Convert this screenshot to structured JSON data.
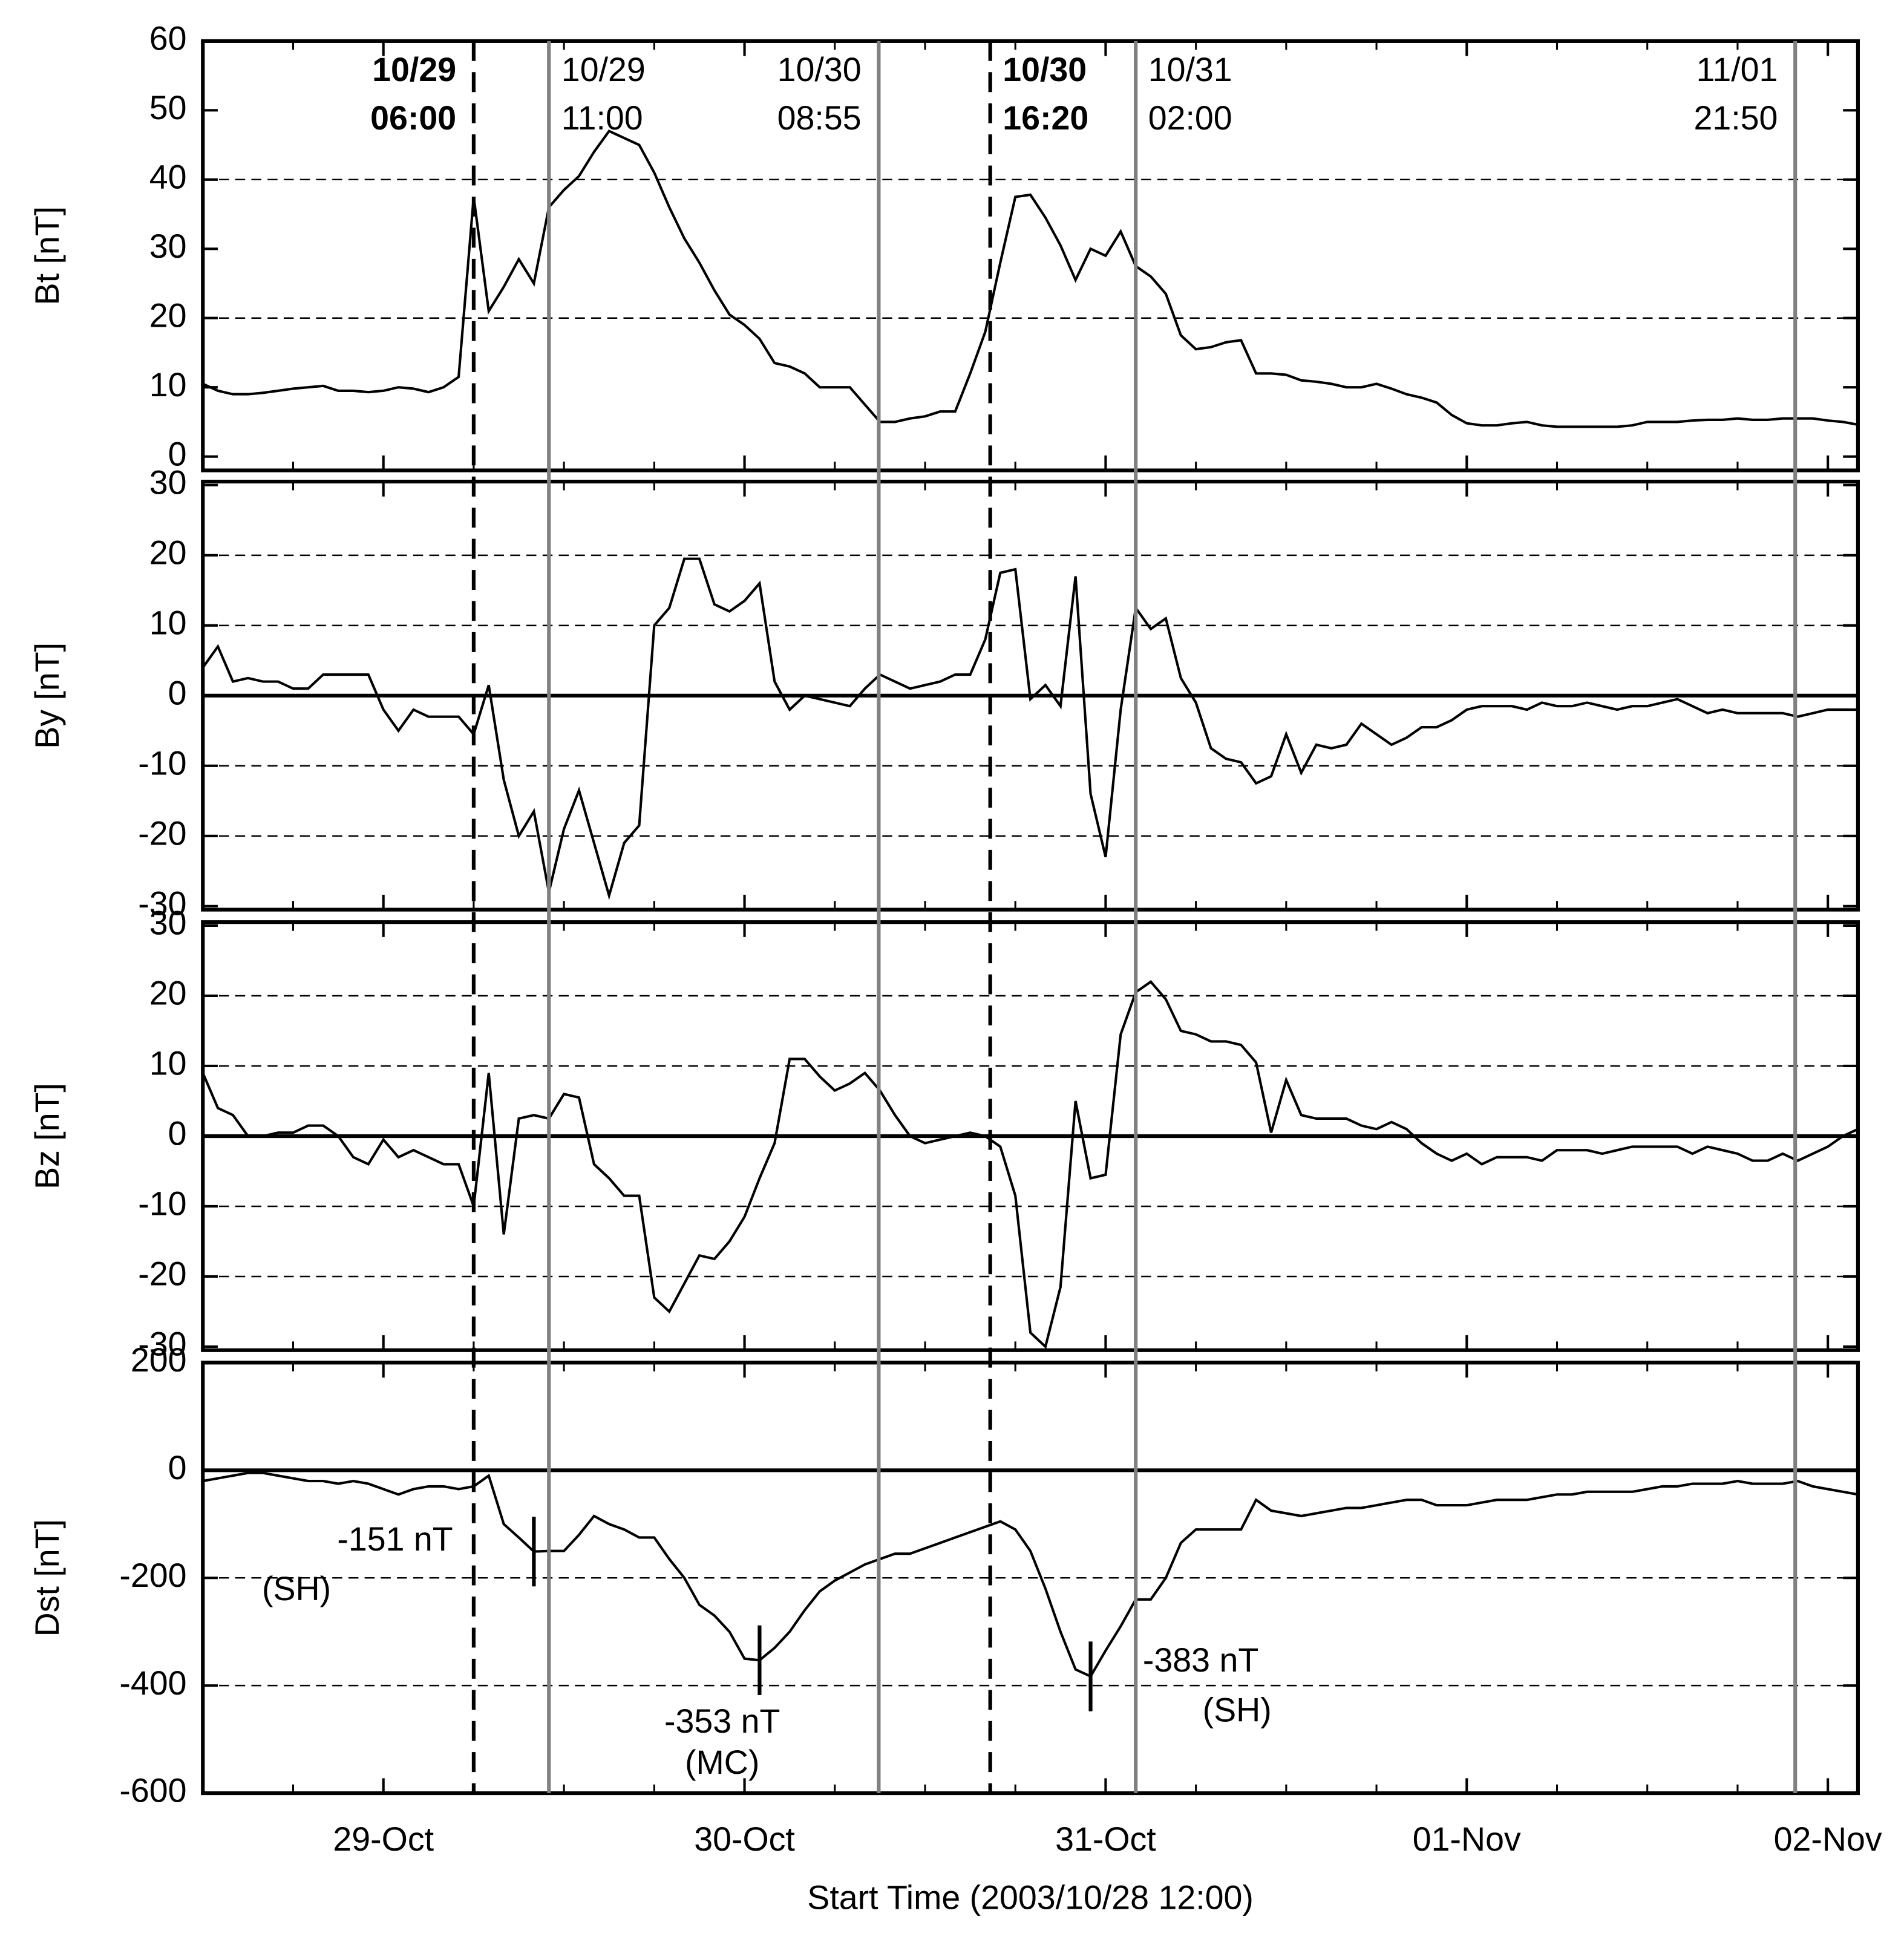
{
  "chart_data": {
    "type": "line",
    "xlabel": "Start Time (2003/10/28 12:00)",
    "xlim": [
      0,
      110
    ],
    "xticks": [
      {
        "value": 12,
        "label": "29-Oct"
      },
      {
        "value": 36,
        "label": "30-Oct"
      },
      {
        "value": 60,
        "label": "31-Oct"
      },
      {
        "value": 84,
        "label": "01-Nov"
      },
      {
        "value": 108,
        "label": "02-Nov"
      }
    ],
    "xminorticks": [
      6,
      18,
      24,
      30,
      42,
      48,
      54,
      66,
      72,
      78,
      90,
      96,
      102
    ],
    "x": [
      0,
      1,
      2,
      3,
      4,
      5,
      6,
      7,
      8,
      9,
      10,
      11,
      12,
      13,
      14,
      15,
      16,
      17,
      18,
      19,
      20,
      21,
      22,
      23,
      24,
      25,
      26,
      27,
      28,
      29,
      30,
      31,
      32,
      33,
      34,
      35,
      36,
      37,
      38,
      39,
      40,
      41,
      42,
      43,
      44,
      45,
      46,
      47,
      48,
      49,
      50,
      51,
      52,
      53,
      54,
      55,
      56,
      57,
      58,
      59,
      60,
      61,
      62,
      63,
      64,
      65,
      66,
      67,
      68,
      69,
      70,
      71,
      72,
      73,
      74,
      75,
      76,
      77,
      78,
      79,
      80,
      81,
      82,
      83,
      84,
      85,
      86,
      87,
      88,
      89,
      90,
      91,
      92,
      93,
      94,
      95,
      96,
      97,
      98,
      99,
      100,
      101,
      102,
      103,
      104,
      105,
      106,
      107,
      108,
      109,
      110
    ],
    "events": [
      {
        "date": "10/29",
        "time": "06:00",
        "x": 18,
        "color": "#000000",
        "dashed": true
      },
      {
        "date": "10/29",
        "time": "11:00",
        "x": 23,
        "color": "#808080",
        "dashed": false
      },
      {
        "date": "10/30",
        "time": "08:55",
        "x": 44.92,
        "color": "#808080",
        "dashed": false
      },
      {
        "date": "10/30",
        "time": "16:20",
        "x": 52.33,
        "color": "#000000",
        "dashed": true
      },
      {
        "date": "10/31",
        "time": "02:00",
        "x": 62,
        "color": "#808080",
        "dashed": false
      },
      {
        "date": "11/01",
        "time": "21:50",
        "x": 105.83,
        "color": "#808080",
        "dashed": false
      }
    ],
    "panels": [
      {
        "ylabel": "Bt [nT]",
        "ylim": [
          -2,
          60
        ],
        "yticks": [
          0,
          10,
          20,
          30,
          40,
          50,
          60
        ],
        "grid": [
          20,
          40
        ],
        "zero_line": false,
        "color": "#000000",
        "values": [
          10.5,
          9.5,
          9,
          9,
          9.2,
          9.5,
          9.8,
          10,
          10.2,
          9.5,
          9.5,
          9.3,
          9.5,
          10,
          9.8,
          9.3,
          10,
          11.5,
          37.5,
          21,
          24.5,
          28.5,
          25,
          36,
          38.5,
          40.5,
          44,
          47,
          46,
          45,
          41,
          36,
          31.5,
          28,
          24,
          20.5,
          19,
          17,
          13.5,
          13,
          12,
          10,
          10,
          10,
          7.5,
          5,
          5,
          5.5,
          5.8,
          6.5,
          6.5,
          12,
          18,
          28,
          37.5,
          37.8,
          34.5,
          30.5,
          25.5,
          30,
          29,
          32.5,
          27.5,
          26,
          23.5,
          17.5,
          15.5,
          15.8,
          16.5,
          16.8,
          12,
          12,
          11.8,
          11,
          10.8,
          10.5,
          10,
          10,
          10.5,
          9.8,
          9,
          8.5,
          7.8,
          6,
          4.8,
          4.5,
          4.5,
          4.8,
          5,
          4.5,
          4.3,
          4.3,
          4.3,
          4.3,
          4.3,
          4.5,
          5,
          5,
          5,
          5.2,
          5.3,
          5.3,
          5.5,
          5.3,
          5.3,
          5.5,
          5.5,
          5.5,
          5.2,
          5,
          4.6
        ]
      },
      {
        "ylabel": "By [nT]",
        "ylim": [
          -30.5,
          30.5
        ],
        "yticks": [
          -30,
          -20,
          -10,
          0,
          10,
          20,
          30
        ],
        "grid": [
          -20,
          -10,
          10,
          20
        ],
        "zero_line": true,
        "color": "#000000",
        "values": [
          4,
          7,
          2,
          2.5,
          2,
          2,
          1,
          1,
          3,
          3,
          3,
          3,
          -2,
          -5,
          -2,
          -3,
          -3,
          -3,
          -5.5,
          1.5,
          -12,
          -20,
          -16.5,
          -28,
          -19,
          -13.5,
          -21,
          -28.5,
          -21,
          -18.5,
          10,
          12.5,
          19.5,
          19.5,
          13,
          12,
          13.5,
          16,
          2,
          -2,
          0,
          -0.5,
          -1,
          -1.5,
          1,
          3,
          2,
          1,
          1.5,
          2,
          3,
          3,
          8,
          17.5,
          18,
          -0.5,
          1.5,
          -1.5,
          17,
          -14,
          -23,
          -2,
          12.5,
          9.5,
          11,
          2.5,
          -1,
          -7.5,
          -9,
          -9.5,
          -12.5,
          -11.5,
          -5.5,
          -11,
          -7,
          -7.5,
          -7,
          -4,
          -5.5,
          -7,
          -6,
          -4.5,
          -4.5,
          -3.5,
          -2,
          -1.5,
          -1.5,
          -1.5,
          -2,
          -1,
          -1.5,
          -1.5,
          -1,
          -1.5,
          -2,
          -1.5,
          -1.5,
          -1,
          -0.5,
          -1.5,
          -2.5,
          -2,
          -2.5,
          -2.5,
          -2.5,
          -2.5,
          -3,
          -2.5,
          -2,
          -2,
          -2
        ]
      },
      {
        "ylabel": "Bz [nT]",
        "ylim": [
          -30.5,
          30.5
        ],
        "yticks": [
          -30,
          -20,
          -10,
          0,
          10,
          20,
          30
        ],
        "grid": [
          -20,
          -10,
          10,
          20
        ],
        "zero_line": true,
        "color": "#000000",
        "values": [
          9,
          4,
          3,
          0,
          0,
          0.5,
          0.5,
          1.5,
          1.5,
          0,
          -3,
          -4,
          -0.5,
          -3,
          -2,
          -3,
          -4,
          -4,
          -10,
          9,
          -14,
          2.5,
          3,
          2.5,
          6,
          5.5,
          -4,
          -6,
          -8.5,
          -8.5,
          -23,
          -25,
          -21,
          -17,
          -17.5,
          -15,
          -11.5,
          -6,
          -1,
          11,
          11,
          8.5,
          6.5,
          7.5,
          9,
          6.5,
          3,
          0,
          -1,
          -0.5,
          0,
          0.5,
          0,
          -1.5,
          -8.5,
          -28,
          -30,
          -21.5,
          5,
          -6,
          -5.5,
          14.5,
          20.5,
          22,
          19.5,
          15,
          14.5,
          13.5,
          13.5,
          13,
          10.5,
          0.5,
          8,
          3,
          2.5,
          2.5,
          2.5,
          1.5,
          1,
          2,
          1,
          -1,
          -2.5,
          -3.5,
          -2.5,
          -4,
          -3,
          -3,
          -3,
          -3.5,
          -2,
          -2,
          -2,
          -2.5,
          -2,
          -1.5,
          -1.5,
          -1.5,
          -1.5,
          -2.5,
          -1.5,
          -2,
          -2.5,
          -3.5,
          -3.5,
          -2.5,
          -3.5,
          -2.5,
          -1.5,
          0,
          1
        ]
      },
      {
        "ylabel": "Dst [nT]",
        "ylim": [
          -600,
          200
        ],
        "yticks": [
          -600,
          -400,
          -200,
          0,
          200
        ],
        "grid": [
          -400,
          -200
        ],
        "zero_line": true,
        "color": "#000000",
        "values": [
          -20,
          -15,
          -10,
          -5,
          -5,
          -10,
          -15,
          -20,
          -20,
          -25,
          -20,
          -25,
          -35,
          -45,
          -35,
          -30,
          -30,
          -35,
          -30,
          -10,
          -100,
          -125,
          -151,
          -150,
          -150,
          -120,
          -85,
          -100,
          -110,
          -125,
          -125,
          -165,
          -200,
          -250,
          -270,
          -300,
          -350,
          -353,
          -330,
          -300,
          -260,
          -225,
          -205,
          -190,
          -175,
          -165,
          -155,
          -155,
          -145,
          -135,
          -125,
          -115,
          -105,
          -95,
          -110,
          -150,
          -220,
          -300,
          -370,
          -383,
          -335,
          -290,
          -240,
          -240,
          -200,
          -135,
          -110,
          -110,
          -110,
          -110,
          -55,
          -75,
          -80,
          -85,
          -80,
          -75,
          -70,
          -70,
          -65,
          -60,
          -55,
          -55,
          -65,
          -65,
          -65,
          -60,
          -55,
          -55,
          -55,
          -50,
          -45,
          -45,
          -40,
          -40,
          -40,
          -40,
          -35,
          -30,
          -30,
          -25,
          -25,
          -25,
          -20,
          -25,
          -25,
          -25,
          -20,
          -30,
          -35,
          -40,
          -45
        ],
        "annotations": [
          {
            "label": "-151 nT",
            "note": "(SH)",
            "x": 22,
            "value": -151
          },
          {
            "label": "-353 nT",
            "note": "(MC)",
            "x": 37,
            "value": -353
          },
          {
            "label": "-383 nT",
            "note": "(SH)",
            "x": 59,
            "value": -383
          }
        ]
      }
    ]
  }
}
